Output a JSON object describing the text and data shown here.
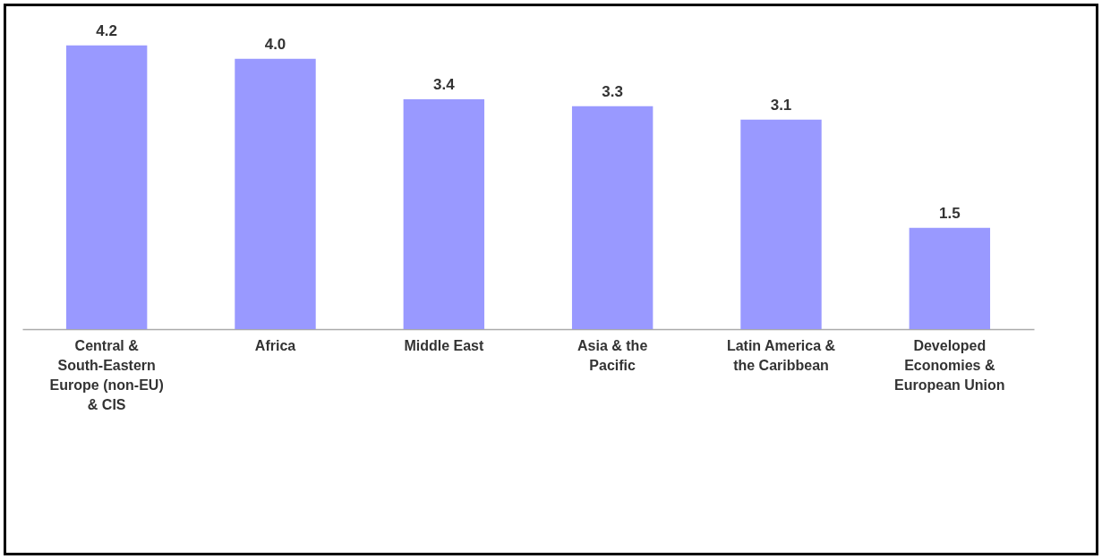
{
  "chart_data": {
    "type": "bar",
    "categories": [
      "Central & South-Eastern Europe (non-EU) & CIS",
      "Africa",
      "Middle East",
      "Asia & the Pacific",
      "Latin America & the Caribbean",
      "Developed Economies & European Union"
    ],
    "values": [
      4.2,
      4.0,
      3.4,
      3.3,
      3.1,
      1.5
    ],
    "value_labels": [
      "4.2",
      "4.0",
      "3.4",
      "3.3",
      "3.1",
      "1.5"
    ],
    "color": "#9999ff"
  }
}
